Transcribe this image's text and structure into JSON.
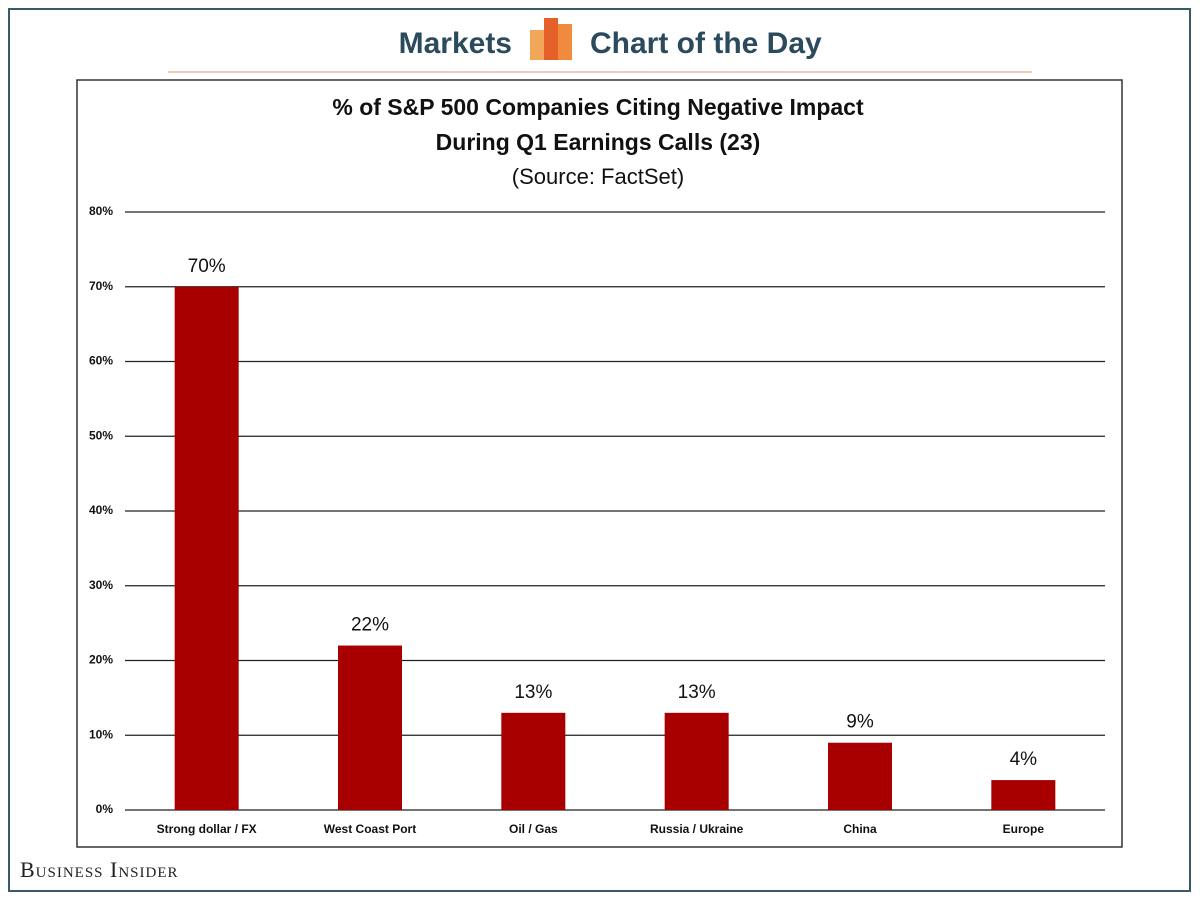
{
  "header": {
    "left": "Markets",
    "right": "Chart of the Day"
  },
  "footer": "Business Insider",
  "chart_data": {
    "type": "bar",
    "title": [
      "% of S&P 500 Companies Citing Negative Impact",
      "During Q1 Earnings Calls (23)"
    ],
    "subtitle": "(Source: FactSet)",
    "categories": [
      "Strong dollar / FX",
      "West Coast Port",
      "Oil / Gas",
      "Russia / Ukraine",
      "China",
      "Europe"
    ],
    "values": [
      70,
      22,
      13,
      13,
      9,
      4
    ],
    "value_labels": [
      "70%",
      "22%",
      "13%",
      "13%",
      "9%",
      "4%"
    ],
    "color": "#a80000",
    "ylim": [
      0,
      80
    ],
    "yticks": [
      {
        "value": 0,
        "label": "0%"
      },
      {
        "value": 10,
        "label": "10%"
      },
      {
        "value": 20,
        "label": "20%"
      },
      {
        "value": 30,
        "label": "30%"
      },
      {
        "value": 40,
        "label": "40%"
      },
      {
        "value": 50,
        "label": "50%"
      },
      {
        "value": 60,
        "label": "60%"
      },
      {
        "value": 70,
        "label": "70%"
      },
      {
        "value": 80,
        "label": "80%"
      }
    ],
    "grid": true
  }
}
